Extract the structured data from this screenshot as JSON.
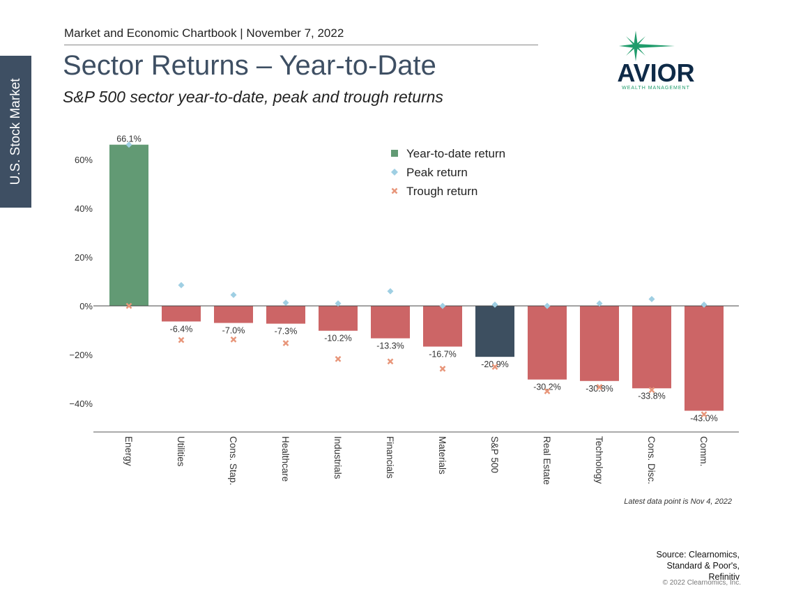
{
  "side_tab": {
    "label": "U.S. Stock Market"
  },
  "header": {
    "chartbook": "Market and Economic Chartbook | November 7, 2022"
  },
  "title": "Sector Returns – Year-to-Date",
  "subtitle": "S&P 500 sector year-to-date, peak and trough returns",
  "logo": {
    "name": "AVIOR",
    "tagline": "WEALTH MANAGEMENT",
    "star_color": "#1f9c6b",
    "text_color": "#0e2a47"
  },
  "chart_data": {
    "type": "bar",
    "categories": [
      "Energy",
      "Utilities",
      "Cons. Stap.",
      "Healthcare",
      "Industrials",
      "Financials",
      "Materials",
      "S&P 500",
      "Real Estate",
      "Technology",
      "Cons. Disc.",
      "Comm."
    ],
    "series": [
      {
        "name": "Year-to-date return",
        "marker": "square",
        "values": [
          66.1,
          -6.4,
          -7.0,
          -7.3,
          -10.2,
          -13.3,
          -16.7,
          -20.9,
          -30.2,
          -30.8,
          -33.8,
          -43.0
        ]
      },
      {
        "name": "Peak return",
        "marker": "diamond",
        "values": [
          66.1,
          8.5,
          4.5,
          1.3,
          1.0,
          6.0,
          0.0,
          0.5,
          0.0,
          1.0,
          2.8,
          0.5
        ]
      },
      {
        "name": "Trough return",
        "marker": "x",
        "values": [
          0.0,
          -14.0,
          -13.8,
          -15.3,
          -21.8,
          -22.8,
          -25.8,
          -25.0,
          -35.0,
          -33.3,
          -34.5,
          -44.5
        ]
      }
    ],
    "data_labels": [
      "66.1%",
      "-6.4%",
      "-7.0%",
      "-7.3%",
      "-10.2%",
      "-13.3%",
      "-16.7%",
      "-20.9%",
      "-30.2%",
      "-30.8%",
      "-33.8%",
      "-43.0%"
    ],
    "yticks": [
      60,
      40,
      20,
      0,
      -20,
      -40
    ],
    "ytick_labels": [
      "60%",
      "40%",
      "20%",
      "0%",
      "−20%",
      "−40%"
    ],
    "ylim": [
      -52,
      70
    ],
    "legend_position": "top-right",
    "grid": false,
    "colors": {
      "positive_bar": "#629a74",
      "negative_bar": "#cc6566",
      "index_bar": "#3d4f60",
      "peak": "#9fcfe3",
      "trough": "#e8967a"
    }
  },
  "footer": {
    "note": "Latest data point is Nov 4, 2022",
    "source": [
      "Source: Clearnomics,",
      "Standard & Poor's,",
      "Refinitiv"
    ],
    "copyright": "© 2022 Clearnomics, Inc."
  }
}
